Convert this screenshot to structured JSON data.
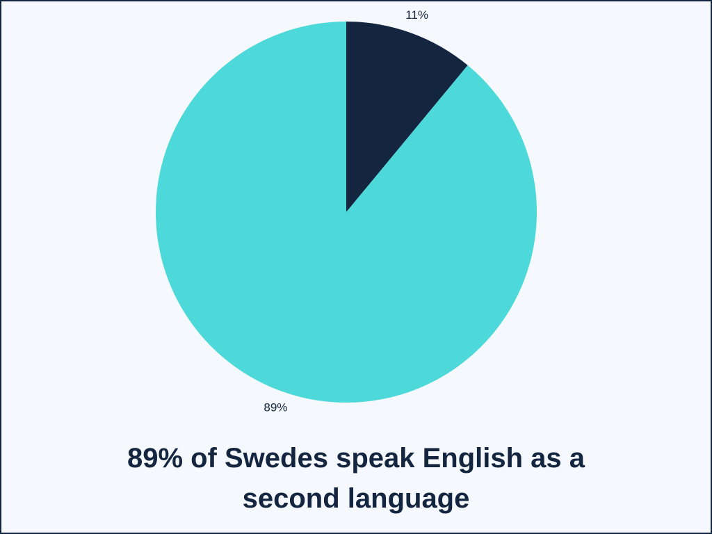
{
  "chart_data": {
    "type": "pie",
    "title": "89% of Swedes speak English as a second language",
    "values": [
      11,
      89
    ],
    "value_labels": [
      "11%",
      "89%"
    ],
    "colors": [
      "#14253f",
      "#4dd8da"
    ]
  }
}
